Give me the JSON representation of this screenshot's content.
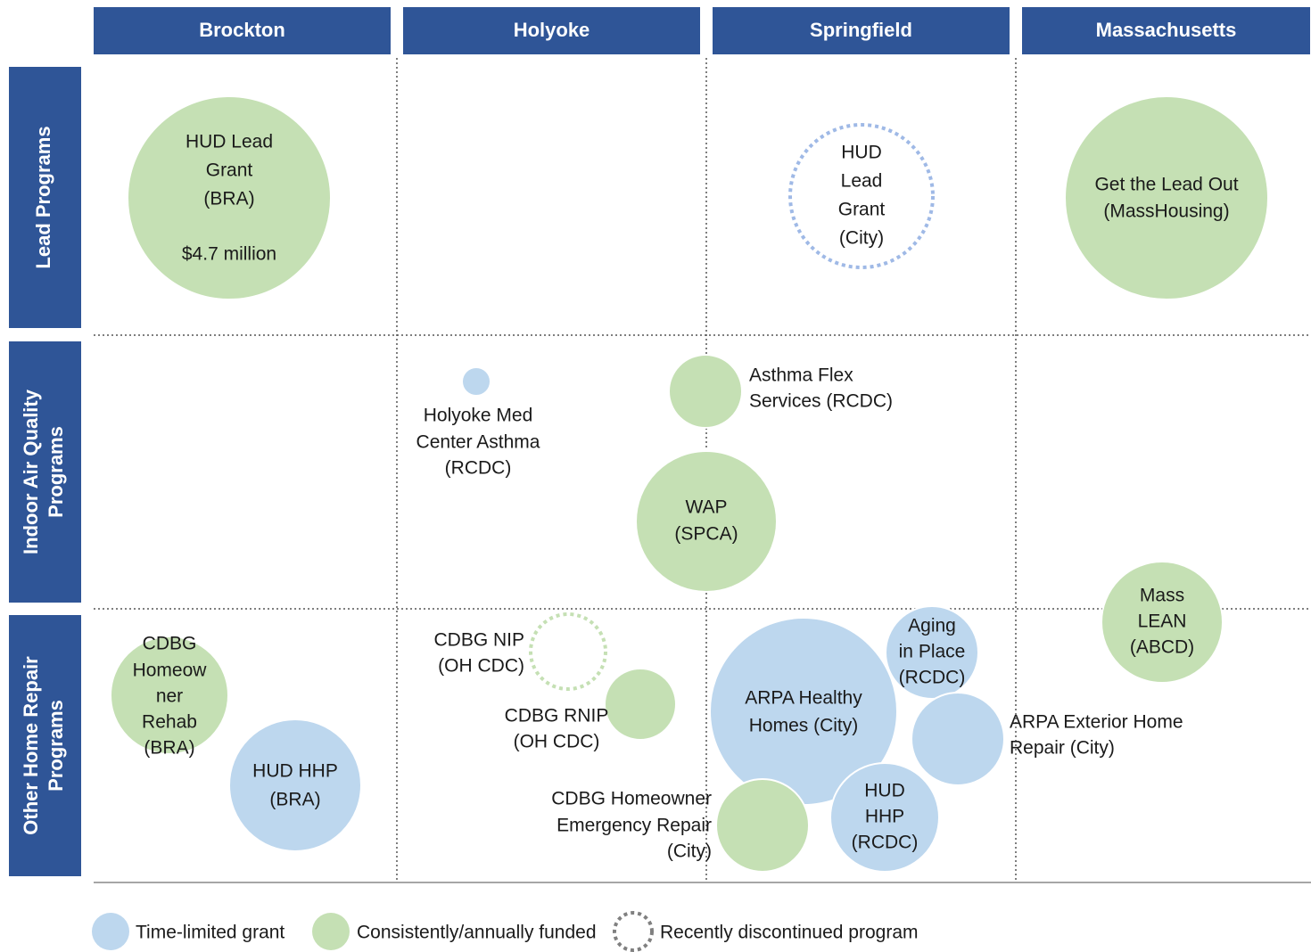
{
  "columns": [
    "Brockton",
    "Holyoke",
    "Springfield",
    "Massachusetts"
  ],
  "rows": [
    {
      "lines": [
        "Lead Programs"
      ]
    },
    {
      "lines": [
        "Indoor Air Quality",
        "Programs"
      ]
    },
    {
      "lines": [
        "Other Home Repair",
        "Programs"
      ]
    }
  ],
  "bubbles": [
    {
      "lines": [
        "HUD Lead",
        "Grant",
        "(BRA)",
        "$4.7 million"
      ],
      "color": "#c5e0b4",
      "dashed": false
    },
    {
      "lines": [
        "HUD",
        "Lead",
        "Grant",
        "(City)"
      ],
      "color": "#9fb9e6",
      "dashed": true
    },
    {
      "lines": [
        "Get the Lead Out",
        "(MassHousing)"
      ],
      "color": "#c5e0b4",
      "dashed": false
    },
    {
      "lines": [
        "Holyoke Med",
        "Center Asthma",
        "(RCDC)"
      ],
      "color": "#bdd7ee",
      "dashed": false
    },
    {
      "lines": [
        "Asthma Flex",
        "Services (RCDC)"
      ],
      "color": "#c5e0b4",
      "dashed": false
    },
    {
      "lines": [
        "WAP",
        "(SPCA)"
      ],
      "color": "#c5e0b4",
      "dashed": false
    },
    {
      "lines": [
        "CDBG NIP",
        "(OH CDC)"
      ],
      "color": "#c5e0b4",
      "dashed": true
    },
    {
      "lines": [
        "CDBG RNIP",
        "(OH CDC)"
      ],
      "color": "#c5e0b4",
      "dashed": false
    },
    {
      "lines": [
        "ARPA Healthy",
        "Homes (City)"
      ],
      "color": "#bdd7ee",
      "dashed": false
    },
    {
      "lines": [
        "Aging",
        "in Place",
        "(RCDC)"
      ],
      "color": "#bdd7ee",
      "dashed": false
    },
    {
      "lines": [
        "ARPA Exterior Home",
        "Repair (City)"
      ],
      "color": "#bdd7ee",
      "dashed": false
    },
    {
      "lines": [
        "HUD",
        "HHP",
        "(RCDC)"
      ],
      "color": "#bdd7ee",
      "dashed": false
    },
    {
      "lines": [
        "CDBG Homeowner",
        "Emergency Repair",
        "(City)"
      ],
      "color": "#c5e0b4",
      "dashed": false
    },
    {
      "lines": [
        "Mass",
        "LEAN",
        "(ABCD)"
      ],
      "color": "#c5e0b4",
      "dashed": false
    },
    {
      "lines": [
        "CDBG",
        "Homeow",
        "ner",
        "Rehab",
        "(BRA)"
      ],
      "color": "#c5e0b4",
      "dashed": false
    },
    {
      "lines": [
        "HUD HHP",
        "(BRA)"
      ],
      "color": "#bdd7ee",
      "dashed": false
    }
  ],
  "legend": [
    {
      "label": "Time-limited grant",
      "color": "#bdd7ee",
      "dashed": false
    },
    {
      "label": "Consistently/annually funded",
      "color": "#c5e0b4",
      "dashed": false
    },
    {
      "label": "Recently discontinued program",
      "color": "#808080",
      "dashed": true
    }
  ]
}
